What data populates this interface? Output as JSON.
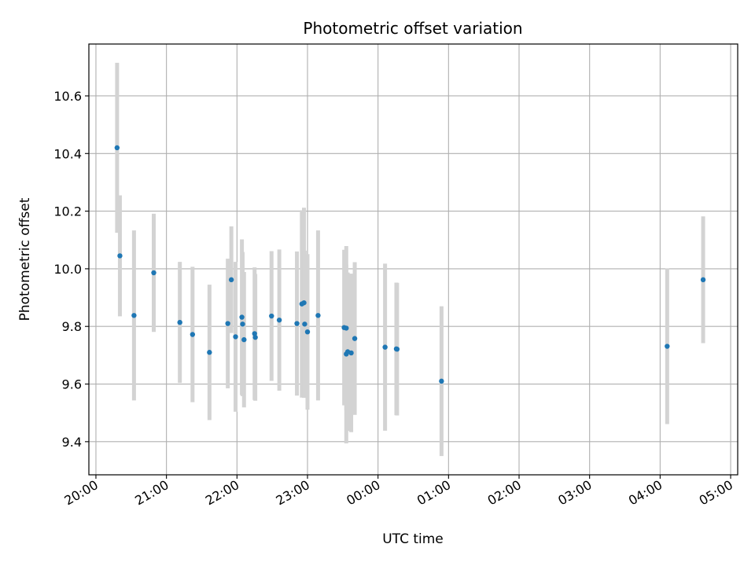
{
  "chart_data": {
    "type": "scatter",
    "title": "Photometric offset variation",
    "xlabel": "UTC time",
    "ylabel": "Photometric offset",
    "x_unit": "hours after 20:00 UTC",
    "xlim": [
      -0.1,
      9.1
    ],
    "ylim": [
      9.285,
      10.78
    ],
    "x_ticks": [
      {
        "value": 0,
        "label": "20:00"
      },
      {
        "value": 1,
        "label": "21:00"
      },
      {
        "value": 2,
        "label": "22:00"
      },
      {
        "value": 3,
        "label": "23:00"
      },
      {
        "value": 4,
        "label": "00:00"
      },
      {
        "value": 5,
        "label": "01:00"
      },
      {
        "value": 6,
        "label": "02:00"
      },
      {
        "value": 7,
        "label": "03:00"
      },
      {
        "value": 8,
        "label": "04:00"
      },
      {
        "value": 9,
        "label": "05:00"
      }
    ],
    "y_ticks": [
      {
        "value": 9.4,
        "label": "9.4"
      },
      {
        "value": 9.6,
        "label": "9.6"
      },
      {
        "value": 9.8,
        "label": "9.8"
      },
      {
        "value": 10.0,
        "label": "10.0"
      },
      {
        "value": 10.2,
        "label": "10.2"
      },
      {
        "value": 10.4,
        "label": "10.4"
      },
      {
        "value": 10.6,
        "label": "10.6"
      }
    ],
    "grid": true,
    "point_color": "#1f77b4",
    "errorbar_color": "#d3d3d3",
    "points": [
      {
        "x": 0.3,
        "y": 10.42,
        "err": 0.295
      },
      {
        "x": 0.34,
        "y": 10.045,
        "err": 0.21
      },
      {
        "x": 0.54,
        "y": 9.838,
        "err": 0.295
      },
      {
        "x": 0.82,
        "y": 9.986,
        "err": 0.205
      },
      {
        "x": 1.19,
        "y": 9.814,
        "err": 0.21
      },
      {
        "x": 1.37,
        "y": 9.772,
        "err": 0.235
      },
      {
        "x": 1.61,
        "y": 9.71,
        "err": 0.235
      },
      {
        "x": 1.87,
        "y": 9.81,
        "err": 0.225
      },
      {
        "x": 1.92,
        "y": 9.962,
        "err": 0.185
      },
      {
        "x": 1.98,
        "y": 9.764,
        "err": 0.26
      },
      {
        "x": 2.07,
        "y": 9.832,
        "err": 0.27
      },
      {
        "x": 2.08,
        "y": 9.808,
        "err": 0.25
      },
      {
        "x": 2.1,
        "y": 9.754,
        "err": 0.235
      },
      {
        "x": 2.25,
        "y": 9.775,
        "err": 0.23
      },
      {
        "x": 2.26,
        "y": 9.762,
        "err": 0.22
      },
      {
        "x": 2.49,
        "y": 9.836,
        "err": 0.225
      },
      {
        "x": 2.6,
        "y": 9.822,
        "err": 0.245
      },
      {
        "x": 2.85,
        "y": 9.81,
        "err": 0.25
      },
      {
        "x": 2.92,
        "y": 9.878,
        "err": 0.325
      },
      {
        "x": 2.95,
        "y": 9.882,
        "err": 0.33
      },
      {
        "x": 2.96,
        "y": 9.808,
        "err": 0.255
      },
      {
        "x": 3.0,
        "y": 9.781,
        "err": 0.27
      },
      {
        "x": 3.15,
        "y": 9.838,
        "err": 0.295
      },
      {
        "x": 3.52,
        "y": 9.796,
        "err": 0.27
      },
      {
        "x": 3.55,
        "y": 9.794,
        "err": 0.285
      },
      {
        "x": 3.55,
        "y": 9.704,
        "err": 0.31
      },
      {
        "x": 3.57,
        "y": 9.712,
        "err": 0.275
      },
      {
        "x": 3.62,
        "y": 9.708,
        "err": 0.275
      },
      {
        "x": 3.67,
        "y": 9.758,
        "err": 0.265
      },
      {
        "x": 4.1,
        "y": 9.728,
        "err": 0.29
      },
      {
        "x": 4.26,
        "y": 9.722,
        "err": 0.23
      },
      {
        "x": 4.27,
        "y": 9.721,
        "err": 0.23
      },
      {
        "x": 4.9,
        "y": 9.61,
        "err": 0.26
      },
      {
        "x": 8.1,
        "y": 9.731,
        "err": 0.27
      },
      {
        "x": 8.61,
        "y": 9.962,
        "err": 0.22
      }
    ]
  }
}
